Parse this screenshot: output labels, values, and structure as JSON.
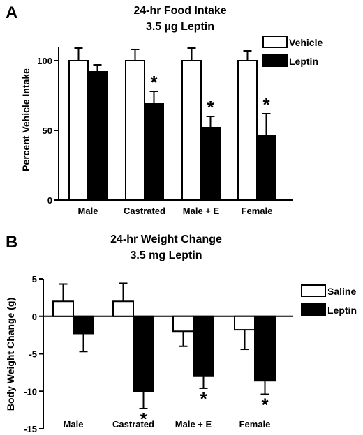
{
  "chart_data": [
    {
      "panel": "A",
      "type": "bar",
      "title_lines": [
        "24-hr Food Intake",
        "3.5 µg  Leptin"
      ],
      "xlabel": "",
      "ylabel": "Percent Vehicle Intake",
      "ylim": [
        0,
        110
      ],
      "yticks": [
        0,
        50,
        100
      ],
      "categories": [
        "Male",
        "Castrated",
        "Male + E",
        "Female"
      ],
      "series": [
        {
          "name": "Vehicle",
          "fill": "#ffffff",
          "values": [
            100,
            100,
            100,
            100
          ],
          "errors": [
            9,
            8,
            9,
            7
          ]
        },
        {
          "name": "Leptin",
          "fill": "#000000",
          "values": [
            92,
            69,
            52,
            46
          ],
          "errors": [
            5,
            9,
            8,
            16
          ]
        }
      ],
      "significance": [
        "",
        "*",
        "*",
        "*"
      ],
      "legend_position": "top-right",
      "grid": false
    },
    {
      "panel": "B",
      "type": "bar",
      "title_lines": [
        "24-hr  Weight Change",
        "3.5 mg  Leptin"
      ],
      "xlabel": "",
      "ylabel": "Body Weight Change (g)",
      "ylim": [
        -15,
        5
      ],
      "yticks": [
        -15,
        -10,
        -5,
        0,
        5
      ],
      "categories": [
        "Male",
        "Castrated",
        "Male + E",
        "Female"
      ],
      "series": [
        {
          "name": "Saline",
          "fill": "#ffffff",
          "values": [
            2,
            2,
            -2,
            -1.8
          ],
          "errors": [
            2.3,
            2.4,
            2.0,
            2.6
          ]
        },
        {
          "name": "Leptin",
          "fill": "#000000",
          "values": [
            -2.3,
            -10,
            -8,
            -8.6
          ],
          "errors": [
            2.4,
            2.3,
            1.6,
            1.8
          ]
        }
      ],
      "significance": [
        "",
        "*",
        "*",
        "*"
      ],
      "legend_position": "top-right",
      "grid": false
    }
  ]
}
